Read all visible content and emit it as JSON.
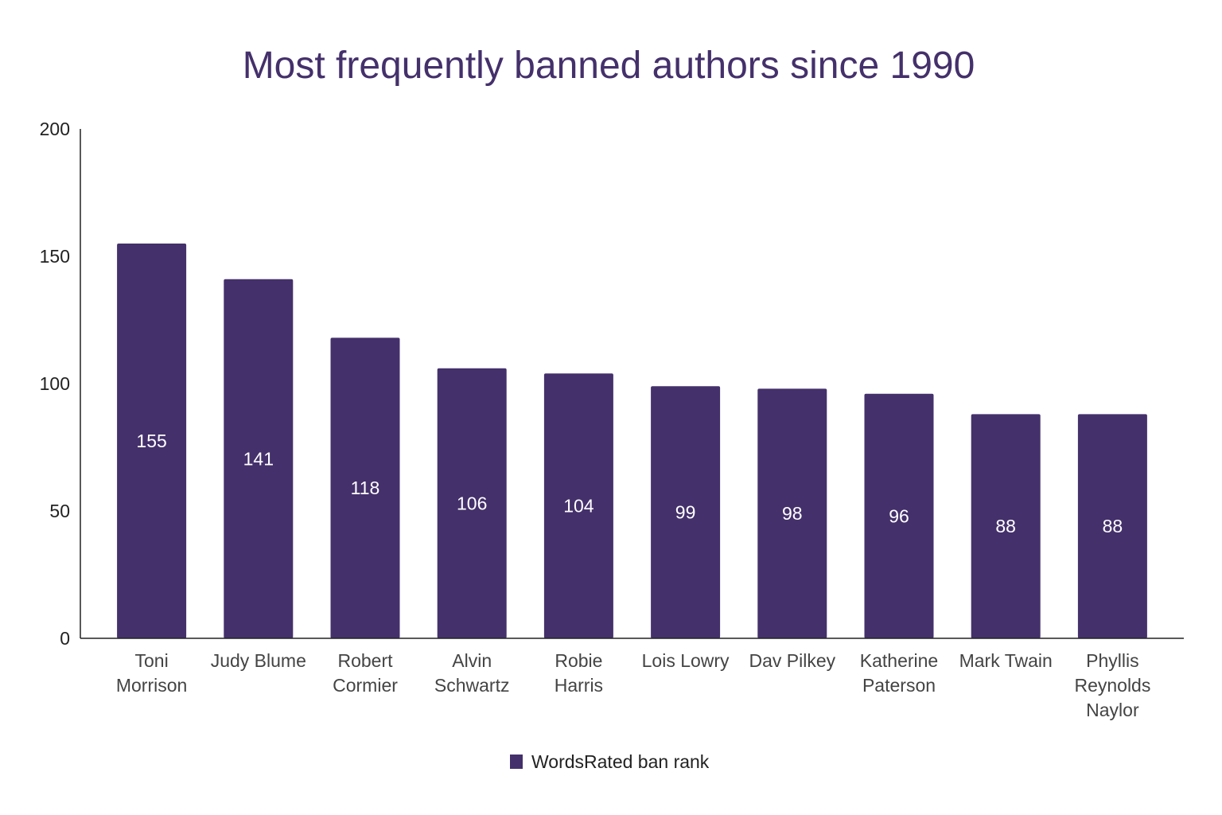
{
  "chart_data": {
    "type": "bar",
    "title": "Most frequently banned authors since 1990",
    "xlabel": "",
    "ylabel": "",
    "categories": [
      [
        "Toni",
        "Morrison"
      ],
      [
        "Judy Blume"
      ],
      [
        "Robert",
        "Cormier"
      ],
      [
        "Alvin",
        "Schwartz"
      ],
      [
        "Robie",
        "Harris"
      ],
      [
        "Lois Lowry"
      ],
      [
        "Dav Pilkey"
      ],
      [
        "Katherine",
        "Paterson"
      ],
      [
        "Mark Twain"
      ],
      [
        "Phyllis",
        "Reynolds",
        "Naylor"
      ]
    ],
    "series": [
      {
        "name": "WordsRated ban rank",
        "values": [
          155,
          141,
          118,
          106,
          104,
          99,
          98,
          96,
          88,
          88
        ],
        "color": "#44306b"
      }
    ],
    "ylim": [
      0,
      200
    ],
    "yticks": [
      0,
      50,
      100,
      150,
      200
    ],
    "grid": false,
    "legend_position": "bottom",
    "data_labels": true,
    "colors": {
      "title": "#44306b",
      "bar": "#44306b",
      "axis": "#222222",
      "data_label": "#ffffff"
    }
  }
}
